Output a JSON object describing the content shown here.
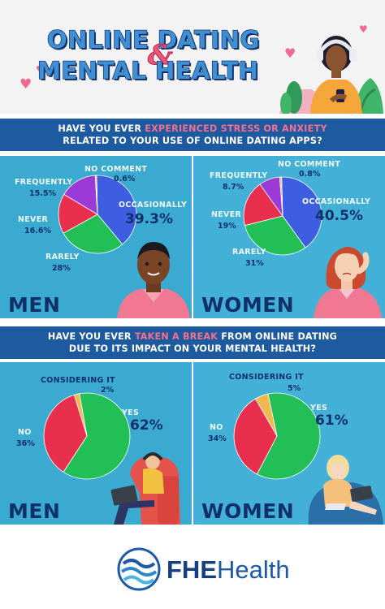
{
  "header": {
    "title_line1": "ONLINE DATING",
    "amp": "&",
    "title_line2": "MENTAL HEALTH"
  },
  "question1": {
    "line1_pre": "HAVE YOU EVER ",
    "line1_highlight": "EXPERIENCED STRESS OR ANXIETY",
    "line2": "RELATED TO YOUR USE OF ONLINE DATING APPS?"
  },
  "question2": {
    "line1_pre": "HAVE YOU EVER ",
    "line1_highlight": "TAKEN A BREAK",
    "line1_post": " FROM ONLINE DATING",
    "line2": "DUE TO ITS IMPACT ON YOUR MENTAL HEALTH?"
  },
  "labels": {
    "men": "MEN",
    "women": "WOMEN",
    "men_stress_vals": {
      "occasionally": "39.3%",
      "rarely": "28%",
      "never": "16.6%",
      "frequently": "15.5%",
      "no_comment": "0.6%"
    },
    "women_stress_vals": {
      "occasionally": "40.5%",
      "rarely": "31%",
      "never": "19%",
      "frequently": "8.7%",
      "no_comment": "0.8%"
    },
    "men_break_vals": {
      "yes": "62%",
      "no": "36%",
      "considering": "2%"
    },
    "women_break_vals": {
      "yes": "61%",
      "no": "34%",
      "considering": "5%"
    }
  },
  "footer": {
    "brand_bold": "FHE",
    "brand_rest": "Health"
  },
  "colors": {
    "occasionally": "#3d5ee0",
    "rarely": "#22bf56",
    "never": "#e8304e",
    "frequently": "#9b3ad6",
    "no_comment": "#f2b850",
    "yes": "#22bf56",
    "no": "#e8304e",
    "considering": "#f2b850",
    "panel_men": "#3aaad0",
    "panel_women": "#43b0d7",
    "band": "#1e5aa0",
    "highlight": "#f3708f"
  },
  "chart_data": [
    {
      "type": "pie",
      "title": "MEN",
      "categories": [
        "OCCASIONALLY",
        "RARELY",
        "NEVER",
        "FREQUENTLY",
        "NO COMMENT"
      ],
      "values": [
        39.3,
        28,
        16.6,
        15.5,
        0.6
      ]
    },
    {
      "type": "pie",
      "title": "WOMEN",
      "categories": [
        "OCCASIONALLY",
        "RARELY",
        "NEVER",
        "FREQUENTLY",
        "NO COMMENT"
      ],
      "values": [
        40.5,
        31,
        19,
        8.7,
        0.8
      ]
    },
    {
      "type": "pie",
      "title": "MEN",
      "categories": [
        "YES",
        "NO",
        "CONSIDERING IT"
      ],
      "values": [
        62,
        36,
        2
      ]
    },
    {
      "type": "pie",
      "title": "WOMEN",
      "categories": [
        "YES",
        "NO",
        "CONSIDERING IT"
      ],
      "values": [
        61,
        34,
        5
      ]
    }
  ]
}
